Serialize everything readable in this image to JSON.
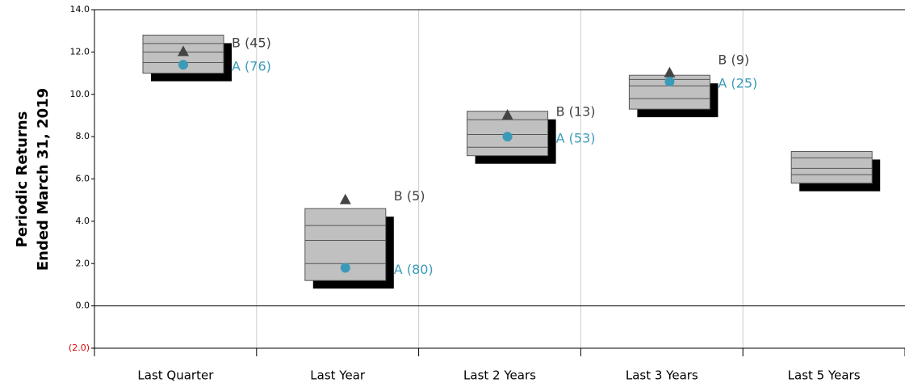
{
  "chart_data": {
    "type": "floating-box",
    "y_label_lines": [
      "Periodic Returns",
      "Ended March 31, 2019"
    ],
    "categories": [
      "Last Quarter",
      "Last Year",
      "Last 2 Years",
      "Last 3 Years",
      "Last 5 Years"
    ],
    "boxes": [
      [
        12.8,
        12.4,
        12.0,
        11.5,
        11.0
      ],
      [
        4.6,
        3.8,
        3.1,
        2.0,
        1.2
      ],
      [
        9.2,
        8.8,
        8.1,
        7.5,
        7.1
      ],
      [
        10.9,
        10.7,
        10.4,
        9.8,
        9.3
      ],
      [
        7.3,
        7.0,
        6.5,
        6.2,
        5.8
      ]
    ],
    "box_color": "#c0c0c0",
    "series": [
      {
        "name": "B",
        "marker": "triangle",
        "color": "#444444",
        "values": [
          12.0,
          5.0,
          9.0,
          11.0,
          null
        ],
        "labels": [
          "B (45)",
          "B (5)",
          "B (13)",
          "B (9)",
          null
        ]
      },
      {
        "name": "A",
        "marker": "circle",
        "color": "#3b9ab8",
        "values": [
          11.4,
          1.8,
          8.0,
          10.6,
          null
        ],
        "labels": [
          "A (76)",
          "A (80)",
          "A (53)",
          "A (25)",
          null
        ]
      }
    ],
    "ylim": [
      -2,
      14
    ],
    "yticks": [
      {
        "value": -2,
        "label": "(2.0)"
      },
      {
        "value": 0,
        "label": "0.0"
      },
      {
        "value": 2,
        "label": "2.0"
      },
      {
        "value": 4,
        "label": "4.0"
      },
      {
        "value": 6,
        "label": "6.0"
      },
      {
        "value": 8,
        "label": "8.0"
      },
      {
        "value": 10,
        "label": "10.0"
      },
      {
        "value": 12,
        "label": "12.0"
      },
      {
        "value": 14,
        "label": "14.0"
      }
    ],
    "negative_tick_color": "#dd0000",
    "grid": true
  }
}
